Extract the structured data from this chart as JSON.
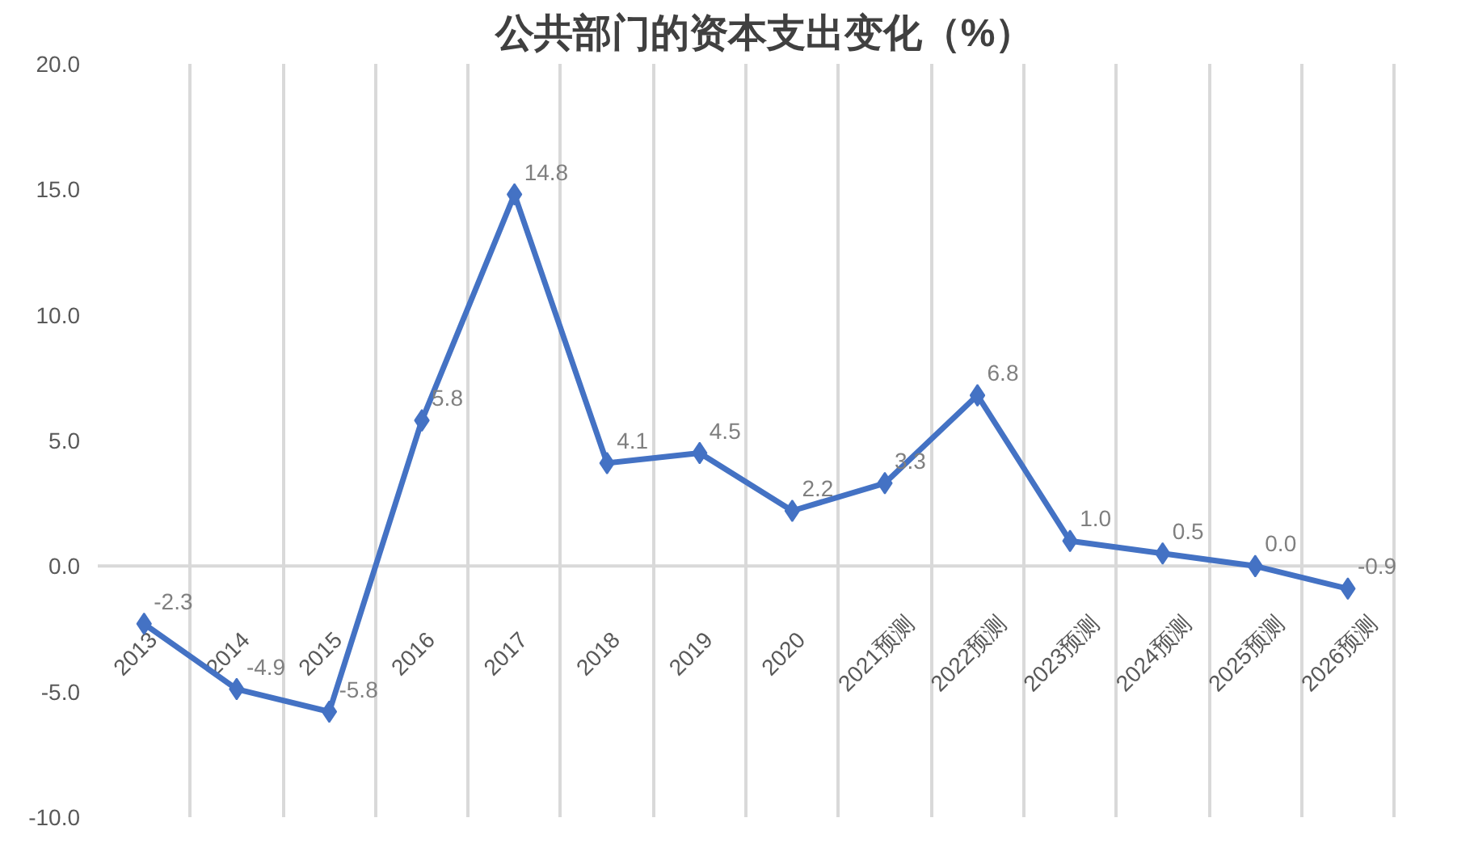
{
  "chart_data": {
    "type": "line",
    "title": "公共部门的资本支出变化（%）",
    "categories": [
      "2013",
      "2014",
      "2015",
      "2016",
      "2017",
      "2018",
      "2019",
      "2020",
      "2021预测",
      "2022预测",
      "2023预测",
      "2024预测",
      "2025预测",
      "2026预测"
    ],
    "series": [
      {
        "color": "#4472c4",
        "values": [
          -2.3,
          -4.9,
          -5.8,
          5.8,
          14.8,
          4.1,
          4.5,
          2.2,
          3.3,
          6.8,
          1.0,
          0.5,
          0.0,
          -0.9
        ],
        "value_labels": [
          "-2.3",
          "-4.9",
          "-5.8",
          "5.8",
          "14.8",
          "4.1",
          "4.5",
          "2.2",
          "3.3",
          "6.8",
          "1.0",
          "0.5",
          "0.0",
          "-0.9"
        ]
      }
    ],
    "ylim": [
      -10,
      20
    ],
    "yticks": [
      {
        "value": -10,
        "label": "-10.0"
      },
      {
        "value": -5,
        "label": "-5.0"
      },
      {
        "value": 0,
        "label": "0.0"
      },
      {
        "value": 5,
        "label": "5.0"
      },
      {
        "value": 10,
        "label": "10.0"
      },
      {
        "value": 15,
        "label": "15.0"
      },
      {
        "value": 20,
        "label": "20.0"
      }
    ],
    "grid": "x",
    "marker": "diamond",
    "line_style": "solid"
  }
}
